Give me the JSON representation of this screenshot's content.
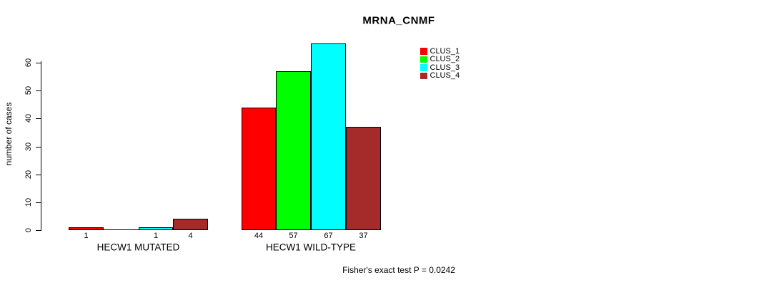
{
  "figure": {
    "title": "MRNA_CNMF",
    "footer": "Fisher's exact test P = 0.0242"
  },
  "chart_data": {
    "type": "bar",
    "title": "MRNA_CNMF",
    "xlabel": "",
    "ylabel": "number of cases",
    "ylim": [
      0,
      67
    ],
    "yticks": [
      0,
      10,
      20,
      30,
      40,
      50,
      60
    ],
    "grid": false,
    "legend_position": "top-right",
    "categories": [
      "HECW1 MUTATED",
      "HECW1 WILD-TYPE"
    ],
    "series": [
      {
        "name": "CLUS_1",
        "color": "#FF0000",
        "values": [
          1,
          44
        ]
      },
      {
        "name": "CLUS_2",
        "color": "#00FF00",
        "values": [
          0,
          57
        ]
      },
      {
        "name": "CLUS_3",
        "color": "#00FFFF",
        "values": [
          1,
          67
        ]
      },
      {
        "name": "CLUS_4",
        "color": "#A52A2A",
        "values": [
          4,
          37
        ]
      }
    ],
    "bar_value_labels": [
      [
        "1",
        "",
        "1",
        "4"
      ],
      [
        "44",
        "57",
        "67",
        "37"
      ]
    ],
    "annotation": "Fisher's exact test P = 0.0242"
  },
  "colors": {
    "background": "#FFFFFF",
    "axis": "#000000",
    "text": "#000000"
  }
}
